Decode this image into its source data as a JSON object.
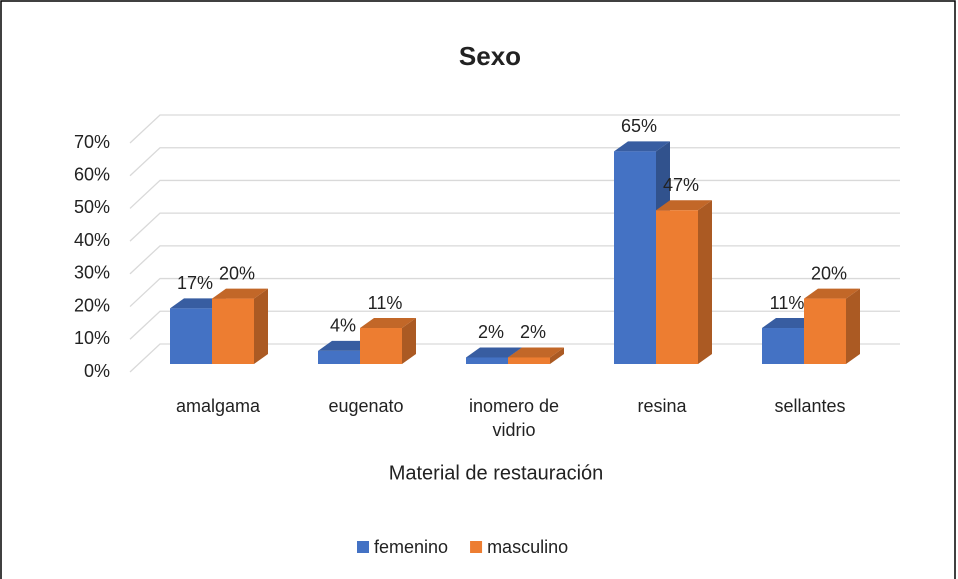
{
  "chart_data": {
    "type": "bar3d",
    "title": "Sexo",
    "x_label": "Material de restauración",
    "categories": [
      "amalgama",
      "eugenato",
      "inomero de vidrio",
      "resina",
      "sellantes"
    ],
    "series": [
      {
        "name": "femenino",
        "color": "#4472c4",
        "values": [
          17,
          4,
          2,
          65,
          11
        ],
        "value_labels": [
          "17%",
          "4%",
          "2%",
          "65%",
          "11%"
        ]
      },
      {
        "name": "masculino",
        "color": "#ed7d31",
        "values": [
          20,
          11,
          2,
          47,
          20
        ],
        "value_labels": [
          "20%",
          "11%",
          "2%",
          "47%",
          "20%"
        ]
      }
    ],
    "ylim": [
      0,
      70
    ],
    "yticks": [
      {
        "value": 0,
        "label": "0%"
      },
      {
        "value": 10,
        "label": "10%"
      },
      {
        "value": 20,
        "label": "20%"
      },
      {
        "value": 30,
        "label": "30%"
      },
      {
        "value": 40,
        "label": "40%"
      },
      {
        "value": 50,
        "label": "50%"
      },
      {
        "value": 60,
        "label": "60%"
      },
      {
        "value": 70,
        "label": "70%"
      }
    ],
    "grid": true,
    "legend": "bottom"
  }
}
